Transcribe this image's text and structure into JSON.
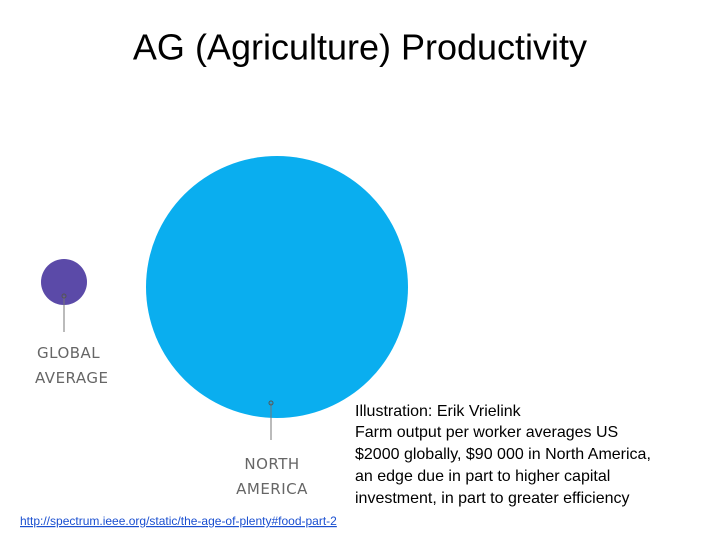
{
  "title": "AG (Agriculture) Productivity",
  "illustration": {
    "global_label": [
      "GLOBAL",
      "AVERAGE"
    ],
    "north_america_label": [
      "NORTH",
      "AMERICA"
    ]
  },
  "caption": [
    "Illustration: Erik Vrielink",
    "Farm output per worker averages US",
    "$2000 globally, $90 000 in North America,",
    "an edge due in part to higher capital",
    "investment, in part to greater efficiency"
  ],
  "link": "http://spectrum.ieee.org/static/the-age-of-plenty#food-part-2"
}
